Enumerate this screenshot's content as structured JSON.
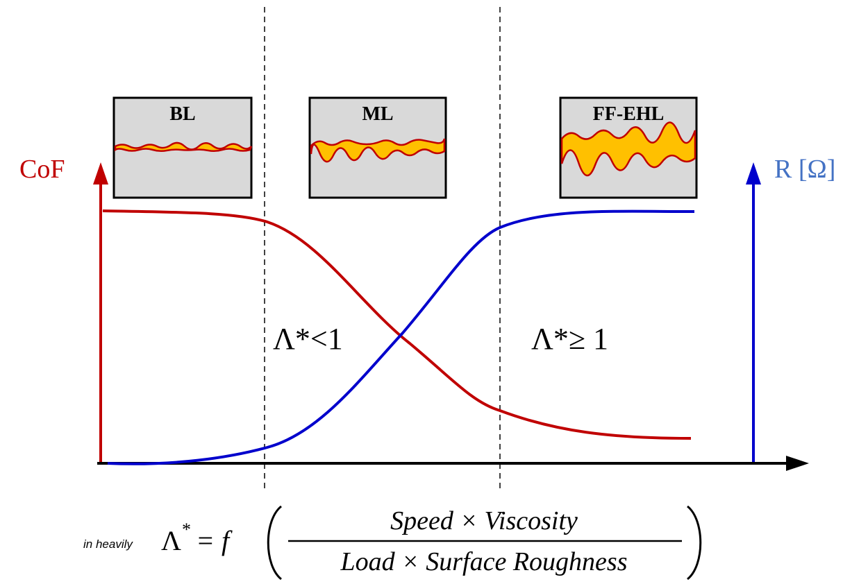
{
  "axes": {
    "left_label": "CoF",
    "right_label": "R [Ω]"
  },
  "regimes": [
    {
      "label": "BL"
    },
    {
      "label": "ML"
    },
    {
      "label": "FF-EHL"
    }
  ],
  "annotations": {
    "low": "Λ*<1",
    "high": "Λ*≥ 1"
  },
  "formula": {
    "symbol": "Λ",
    "superscript": "*",
    "equals": "= f",
    "numerator": "Speed × Viscosity",
    "denominator": "Load × Surface Roughness"
  },
  "footnote": "in heavily"
}
